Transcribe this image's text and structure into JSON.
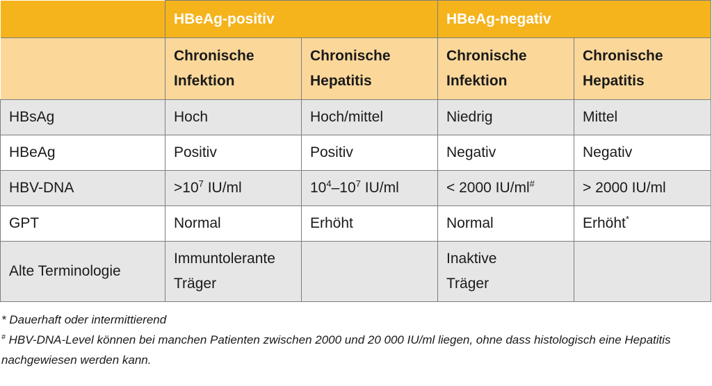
{
  "groups": [
    "HBeAg-positiv",
    "HBeAg-negativ"
  ],
  "subheaders": [
    [
      "Chronische",
      "Infektion"
    ],
    [
      "Chronische",
      "Hepatitis"
    ],
    [
      "Chronische",
      "Infektion"
    ],
    [
      "Chronische",
      "Hepatitis"
    ]
  ],
  "rows": [
    {
      "label": "HBsAg",
      "cells": [
        "Hoch",
        "Hoch/mittel",
        "Niedrig",
        "Mittel"
      ]
    },
    {
      "label": "HBeAg",
      "cells": [
        "Positiv",
        "Positiv",
        "Negativ",
        "Negativ"
      ]
    },
    {
      "label": "HBV-DNA",
      "cells": [
        {
          "pre": ">10",
          "sup": "7",
          "post": " IU/ml"
        },
        {
          "pre": "10",
          "sup": "4",
          "mid": "–10",
          "sup2": "7",
          "post": " IU/ml"
        },
        {
          "pre": "< 2000 IU/ml",
          "sup": "#"
        },
        {
          "pre": "> 2000 IU/ml"
        }
      ]
    },
    {
      "label": "GPT",
      "cells": [
        "Normal",
        "Erhöht",
        "Normal",
        {
          "pre": "Erhöht",
          "sup": "*"
        }
      ]
    },
    {
      "label": "Alte Terminologie",
      "cells": [
        [
          "Immuntolerante",
          "Träger"
        ],
        "",
        [
          "Inaktive",
          "Träger"
        ],
        ""
      ]
    }
  ],
  "footnotes": {
    "note1": "* Dauerhaft oder intermittierend",
    "note2_mark": "#",
    "note2_text": " HBV-DNA-Level können bei manchen Patienten zwischen 2000 und 20 000 IU/ml liegen, ohne dass histologisch eine Hepatitis nachgewiesen werden kann."
  }
}
